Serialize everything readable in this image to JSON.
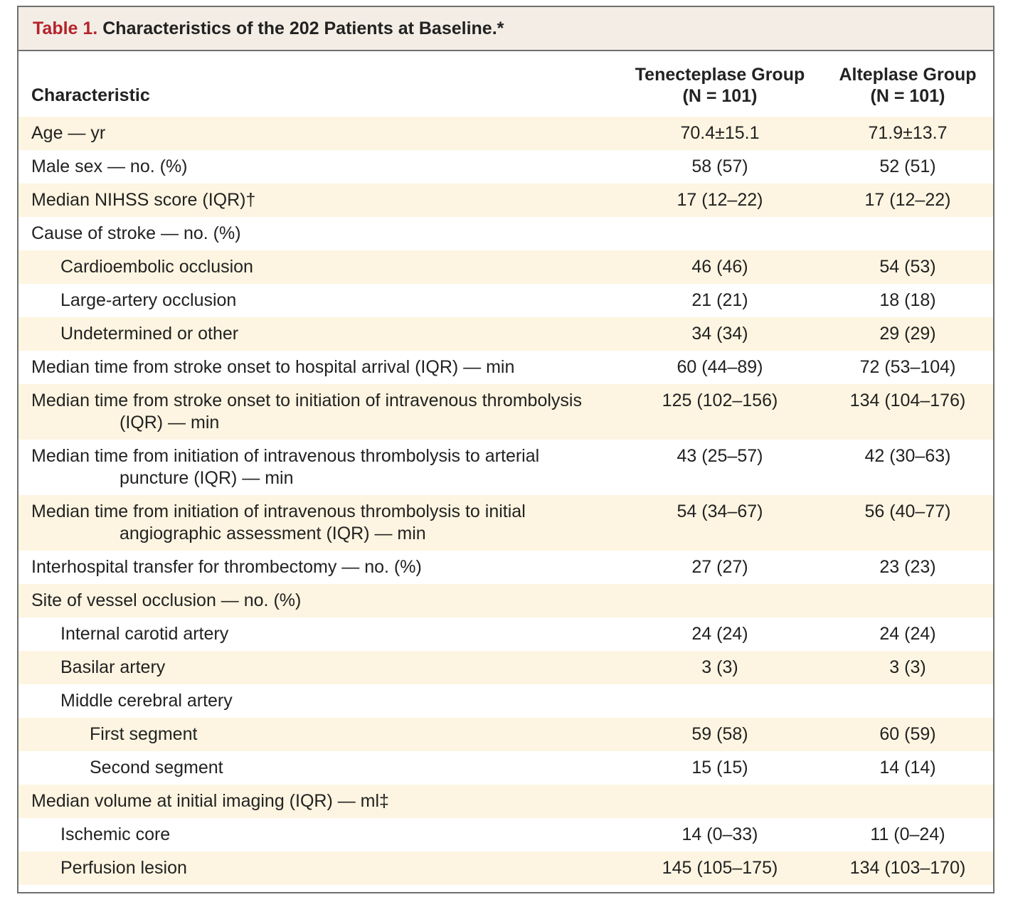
{
  "title": {
    "number": "Table 1.",
    "text": "Characteristics of the 202 Patients at Baseline.*"
  },
  "header": {
    "characteristic": "Characteristic",
    "group1_line1": "Tenecteplase Group",
    "group1_line2": "(N = 101)",
    "group2_line1": "Alteplase Group",
    "group2_line2": "(N = 101)"
  },
  "rows": [
    {
      "label": "Age — yr",
      "label2": "",
      "tenecteplase": "70.4±15.1",
      "alteplase": "71.9±13.7",
      "indent": 0
    },
    {
      "label": "Male sex — no. (%)",
      "label2": "",
      "tenecteplase": "58 (57)",
      "alteplase": "52 (51)",
      "indent": 0
    },
    {
      "label": "Median NIHSS score (IQR)†",
      "label2": "",
      "tenecteplase": "17 (12–22)",
      "alteplase": "17 (12–22)",
      "indent": 0
    },
    {
      "label": "Cause of stroke — no. (%)",
      "label2": "",
      "tenecteplase": "",
      "alteplase": "",
      "indent": 0
    },
    {
      "label": "Cardioembolic occlusion",
      "label2": "",
      "tenecteplase": "46 (46)",
      "alteplase": "54 (53)",
      "indent": 1
    },
    {
      "label": "Large-artery occlusion",
      "label2": "",
      "tenecteplase": "21 (21)",
      "alteplase": "18 (18)",
      "indent": 1
    },
    {
      "label": "Undetermined or other",
      "label2": "",
      "tenecteplase": "34 (34)",
      "alteplase": "29 (29)",
      "indent": 1
    },
    {
      "label": "Median time from stroke onset to hospital arrival (IQR) — min",
      "label2": "",
      "tenecteplase": "60 (44–89)",
      "alteplase": "72 (53–104)",
      "indent": 0
    },
    {
      "label": "Median time from stroke onset to initiation of intravenous thrombolysis",
      "label2": "(IQR) — min",
      "tenecteplase": "125 (102–156)",
      "alteplase": "134 (104–176)",
      "indent": 0
    },
    {
      "label": "Median time from initiation of intravenous thrombolysis to arterial",
      "label2": "puncture (IQR) — min",
      "tenecteplase": "43 (25–57)",
      "alteplase": "42 (30–63)",
      "indent": 0
    },
    {
      "label": "Median time from initiation of intravenous thrombolysis to initial",
      "label2": "angiographic assessment (IQR) — min",
      "tenecteplase": "54 (34–67)",
      "alteplase": "56 (40–77)",
      "indent": 0
    },
    {
      "label": "Interhospital transfer for thrombectomy — no. (%)",
      "label2": "",
      "tenecteplase": "27 (27)",
      "alteplase": "23 (23)",
      "indent": 0
    },
    {
      "label": "Site of vessel occlusion — no. (%)",
      "label2": "",
      "tenecteplase": "",
      "alteplase": "",
      "indent": 0
    },
    {
      "label": "Internal carotid artery",
      "label2": "",
      "tenecteplase": "24 (24)",
      "alteplase": "24 (24)",
      "indent": 1
    },
    {
      "label": "Basilar artery",
      "label2": "",
      "tenecteplase": "3 (3)",
      "alteplase": "3 (3)",
      "indent": 1
    },
    {
      "label": "Middle cerebral artery",
      "label2": "",
      "tenecteplase": "",
      "alteplase": "",
      "indent": 1
    },
    {
      "label": "First segment",
      "label2": "",
      "tenecteplase": "59 (58)",
      "alteplase": "60 (59)",
      "indent": 2
    },
    {
      "label": "Second segment",
      "label2": "",
      "tenecteplase": "15 (15)",
      "alteplase": "14 (14)",
      "indent": 2
    },
    {
      "label": "Median volume at initial imaging (IQR) — ml‡",
      "label2": "",
      "tenecteplase": "",
      "alteplase": "",
      "indent": 0
    },
    {
      "label": "Ischemic core",
      "label2": "",
      "tenecteplase": "14 (0–33)",
      "alteplase": "11 (0–24)",
      "indent": 1
    },
    {
      "label": "Perfusion lesion",
      "label2": "",
      "tenecteplase": "145 (105–175)",
      "alteplase": "134 (103–170)",
      "indent": 1
    }
  ]
}
